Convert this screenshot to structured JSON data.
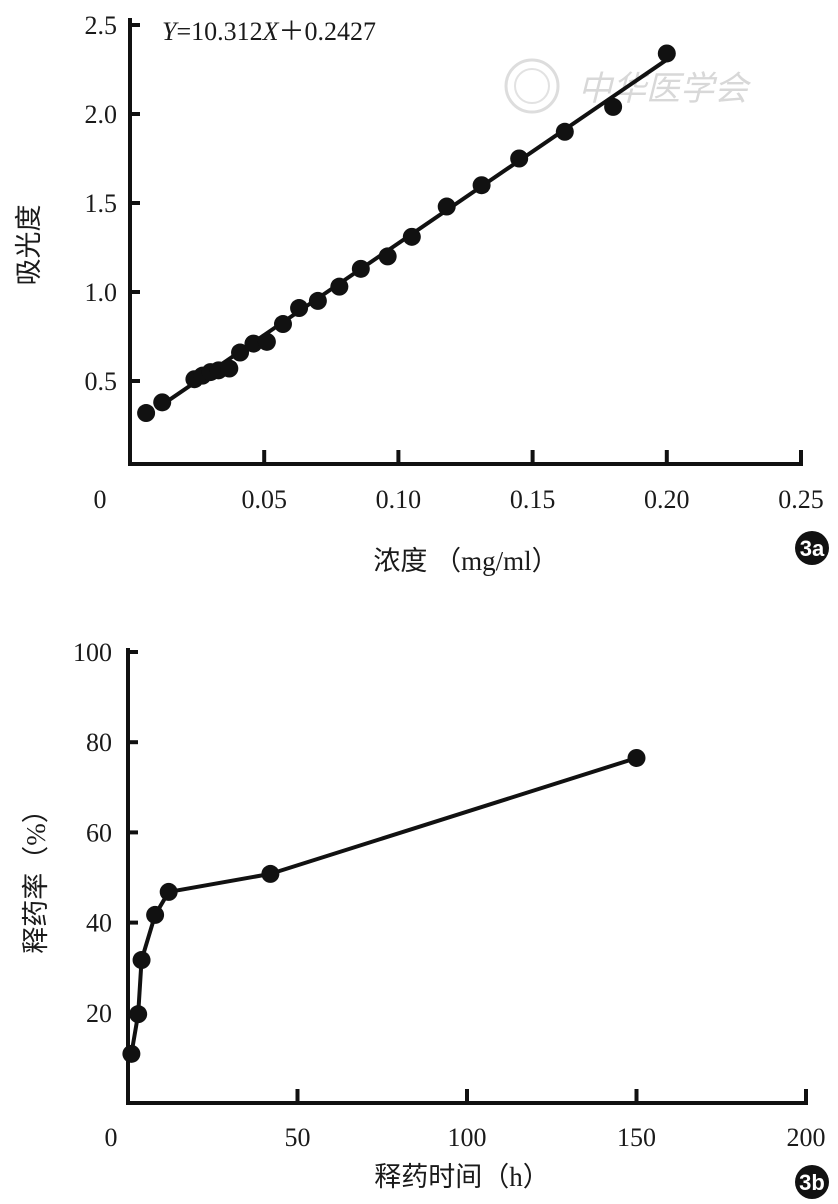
{
  "watermark": "中华医学会",
  "chart_data": [
    {
      "id": "3a",
      "type": "scatter",
      "badge": "3a",
      "title": "",
      "annotation": {
        "y_var": "Y",
        "eq_mid": "=10.312",
        "x_var": "X",
        "eq_tail": "＋0.2427"
      },
      "fit": {
        "slope": 10.312,
        "intercept": 0.2427,
        "x_range": [
          0.01,
          0.2
        ]
      },
      "xlabel": "浓度 （mg/ml）",
      "ylabel": "吸光度",
      "xlim": [
        0,
        0.25
      ],
      "ylim": [
        0,
        2.5
      ],
      "x_ticks": [
        "0",
        "0.05",
        "0.10",
        "0.15",
        "0.20",
        "0.25"
      ],
      "y_ticks": [
        "0.5",
        "1.0",
        "1.5",
        "2.0",
        "2.5"
      ],
      "x": [
        0.006,
        0.012,
        0.024,
        0.027,
        0.03,
        0.033,
        0.037,
        0.041,
        0.046,
        0.051,
        0.057,
        0.063,
        0.07,
        0.078,
        0.086,
        0.096,
        0.105,
        0.118,
        0.131,
        0.145,
        0.162,
        0.18,
        0.2
      ],
      "y": [
        0.32,
        0.38,
        0.51,
        0.53,
        0.55,
        0.56,
        0.57,
        0.66,
        0.71,
        0.72,
        0.82,
        0.91,
        0.95,
        1.03,
        1.13,
        1.2,
        1.31,
        1.48,
        1.6,
        1.75,
        1.9,
        2.04,
        2.34
      ],
      "grid": false
    },
    {
      "id": "3b",
      "type": "line",
      "badge": "3b",
      "title": "",
      "xlabel": "释药时间（h）",
      "ylabel": "释药率（%）",
      "xlim": [
        0,
        200
      ],
      "ylim": [
        0,
        100
      ],
      "x_ticks": [
        "0",
        "50",
        "100",
        "150",
        "200"
      ],
      "y_ticks": [
        "20",
        "40",
        "60",
        "80",
        "100"
      ],
      "x": [
        1,
        3,
        4,
        8,
        12,
        42,
        150
      ],
      "y": [
        10.9,
        19.7,
        31.7,
        41.7,
        46.8,
        50.8,
        76.5
      ],
      "grid": false
    }
  ]
}
